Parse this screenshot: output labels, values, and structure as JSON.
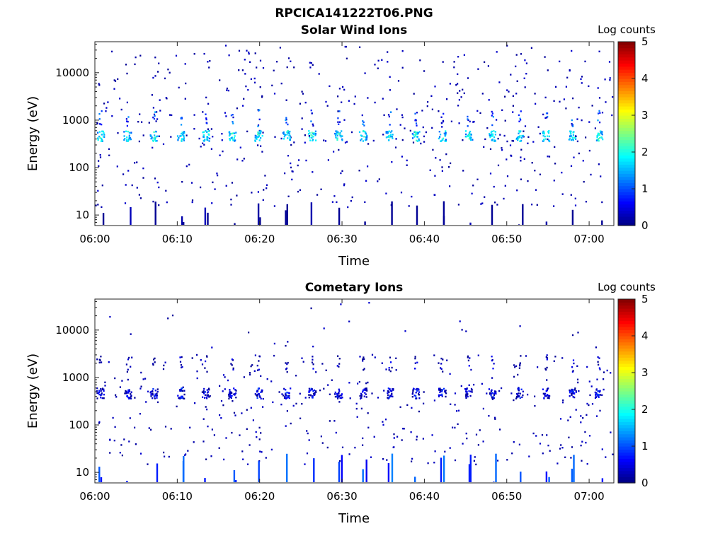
{
  "figure": {
    "title": "RPCICA141222T06.PNG"
  },
  "chart_data": [
    {
      "type": "heatmap",
      "title": "Solar Wind Ions",
      "xlabel": "Time",
      "ylabel": "Energy (eV)",
      "yscale": "log",
      "xlim": [
        "06:00",
        "07:03"
      ],
      "ylim": [
        6,
        45000
      ],
      "xticks": [
        "06:00",
        "06:10",
        "06:20",
        "06:30",
        "06:40",
        "06:50",
        "07:00"
      ],
      "yticks": [
        "10",
        "100",
        "1000",
        "10000"
      ],
      "colorbar": {
        "label": "Log counts",
        "range": [
          0,
          5
        ],
        "ticks": [
          "0",
          "1",
          "2",
          "3",
          "4",
          "5"
        ],
        "colormap": "jet"
      },
      "sweep_start_minutes": [
        0.6,
        3.9,
        7.1,
        10.4,
        13.4,
        16.6,
        19.8,
        23.2,
        26.3,
        29.5,
        32.5,
        35.7,
        38.9,
        42.1,
        45.3,
        48.2,
        51.5,
        54.7,
        57.9,
        61.1
      ],
      "main_band": {
        "energy_eV": 480,
        "log_counts": 2.4
      },
      "secondary_band": {
        "energy_eV": 1150,
        "log_counts": 1.5
      },
      "low_energy_streaks": {
        "energy_range_eV": [
          6,
          20
        ],
        "log_counts": 0.3
      }
    },
    {
      "type": "heatmap",
      "title": "Cometary Ions",
      "xlabel": "Time",
      "ylabel": "Energy (eV)",
      "yscale": "log",
      "xlim": [
        "06:00",
        "07:03"
      ],
      "ylim": [
        6,
        45000
      ],
      "xticks": [
        "06:00",
        "06:10",
        "06:20",
        "06:30",
        "06:40",
        "06:50",
        "07:00"
      ],
      "yticks": [
        "10",
        "100",
        "1000",
        "10000"
      ],
      "colorbar": {
        "label": "Log counts",
        "range": [
          0,
          5
        ],
        "ticks": [
          "0",
          "1",
          "2",
          "3",
          "4",
          "5"
        ],
        "colormap": "jet"
      },
      "sweep_start_minutes": [
        0.6,
        3.9,
        7.1,
        10.4,
        13.4,
        16.6,
        19.8,
        23.2,
        26.3,
        29.5,
        32.5,
        35.7,
        38.9,
        42.1,
        45.3,
        48.2,
        51.5,
        54.7,
        57.9,
        61.1
      ],
      "main_band": {
        "energy_eV": 480,
        "log_counts": 1.1
      },
      "secondary_band": {
        "energy_eV": 2000,
        "log_counts": 0.7
      },
      "low_energy_streaks": {
        "energy_range_eV": [
          6,
          25
        ],
        "log_counts": 1.3
      }
    }
  ]
}
